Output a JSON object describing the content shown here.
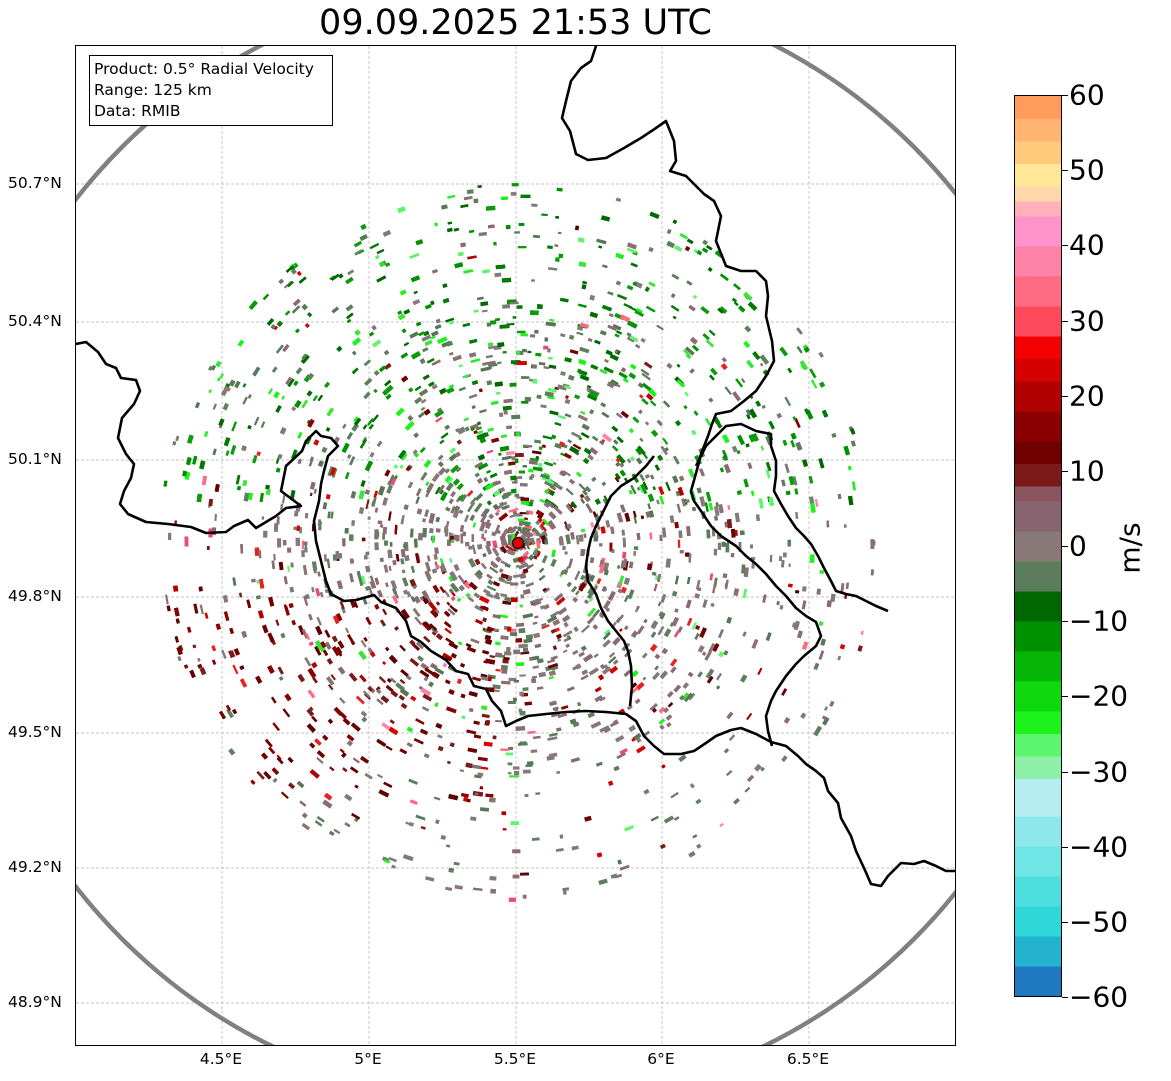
{
  "title": "09.09.2025 21:53 UTC",
  "info": {
    "product": "Product: 0.5° Radial Velocity",
    "range": "Range: 125 km",
    "data": "Data: RMIB"
  },
  "axes": {
    "lat_ticks": [
      "50.7°N",
      "50.4°N",
      "50.1°N",
      "49.8°N",
      "49.5°N",
      "49.2°N",
      "48.9°N"
    ],
    "lon_ticks": [
      "4.5°E",
      "5°E",
      "5.5°E",
      "6°E",
      "6.5°E"
    ]
  },
  "colorbar": {
    "label": "m/s",
    "ticks": [
      "60",
      "50",
      "40",
      "30",
      "20",
      "10",
      "0",
      "−10",
      "−20",
      "−30",
      "−40",
      "−50",
      "−60"
    ],
    "min": -60,
    "max": 60,
    "bands": [
      {
        "from": -60,
        "to": -56,
        "color": "#1f78c0"
      },
      {
        "from": -56,
        "to": -52,
        "color": "#23b3cf"
      },
      {
        "from": -52,
        "to": -48,
        "color": "#2ed8d8"
      },
      {
        "from": -48,
        "to": -44,
        "color": "#4ddfdf"
      },
      {
        "from": -44,
        "to": -40,
        "color": "#6fe5e5"
      },
      {
        "from": -40,
        "to": -36,
        "color": "#8ee8ea"
      },
      {
        "from": -36,
        "to": -31,
        "color": "#b5eef0"
      },
      {
        "from": -31,
        "to": -28,
        "color": "#8ef0a8"
      },
      {
        "from": -28,
        "to": -25,
        "color": "#5ef56e"
      },
      {
        "from": -25,
        "to": -22,
        "color": "#1bf31b"
      },
      {
        "from": -22,
        "to": -18,
        "color": "#0fd80f"
      },
      {
        "from": -18,
        "to": -14,
        "color": "#06b606"
      },
      {
        "from": -14,
        "to": -10,
        "color": "#009100"
      },
      {
        "from": -10,
        "to": -6,
        "color": "#006800"
      },
      {
        "from": -6,
        "to": -2,
        "color": "#5b7d5b"
      },
      {
        "from": -2,
        "to": 2,
        "color": "#887878"
      },
      {
        "from": 2,
        "to": 6,
        "color": "#886470"
      },
      {
        "from": 6,
        "to": 8,
        "color": "#8a5560"
      },
      {
        "from": 8,
        "to": 11,
        "color": "#7a1a1a"
      },
      {
        "from": 11,
        "to": 14,
        "color": "#700000"
      },
      {
        "from": 14,
        "to": 18,
        "color": "#8a0000"
      },
      {
        "from": 18,
        "to": 22,
        "color": "#b00000"
      },
      {
        "from": 22,
        "to": 25,
        "color": "#d60000"
      },
      {
        "from": 25,
        "to": 28,
        "color": "#f50000"
      },
      {
        "from": 28,
        "to": 32,
        "color": "#ff4a5e"
      },
      {
        "from": 32,
        "to": 36,
        "color": "#ff6b83"
      },
      {
        "from": 36,
        "to": 40,
        "color": "#ff82a8"
      },
      {
        "from": 40,
        "to": 44,
        "color": "#ff93cc"
      },
      {
        "from": 44,
        "to": 46,
        "color": "#ffb0b8"
      },
      {
        "from": 46,
        "to": 48,
        "color": "#ffd7a8"
      },
      {
        "from": 48,
        "to": 51,
        "color": "#ffe79a"
      },
      {
        "from": 51,
        "to": 54,
        "color": "#ffca7a"
      },
      {
        "from": 54,
        "to": 57,
        "color": "#ffb471"
      },
      {
        "from": 57,
        "to": 60,
        "color": "#ff9c5c"
      }
    ]
  },
  "radar": {
    "site_color": "#e00000",
    "range_ring_color": "#808080",
    "border_color": "#000000"
  }
}
